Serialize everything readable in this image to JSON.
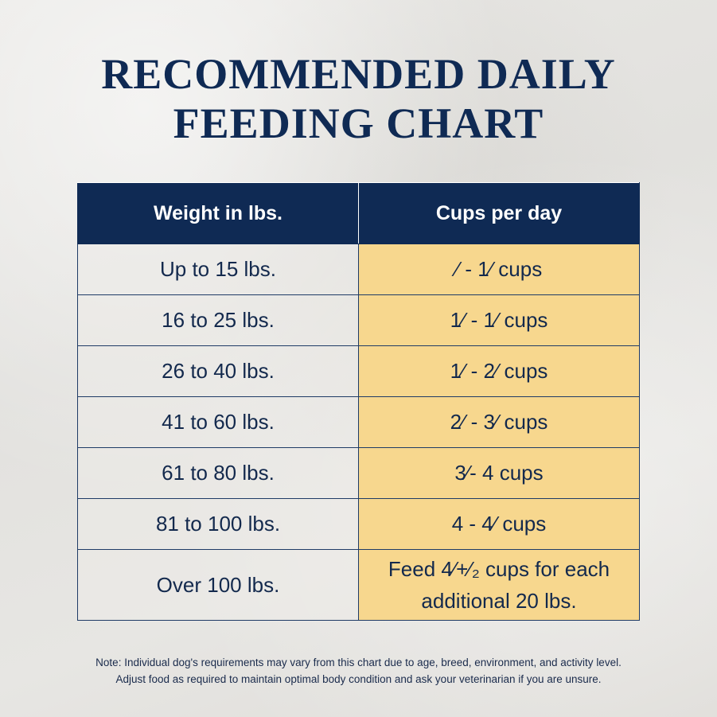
{
  "title": {
    "line1": "RECOMMENDED DAILY",
    "line2": "FEEDING CHART"
  },
  "table": {
    "headers": [
      "Weight in lbs.",
      "Cups per day"
    ],
    "rows": [
      {
        "weight": "Up to 15 lbs.",
        "cups": "⁄ - 1⁄ cups"
      },
      {
        "weight": "16 to 25 lbs.",
        "cups": "1⁄ - 1⁄ cups"
      },
      {
        "weight": "26 to 40 lbs.",
        "cups": "1⁄ - 2⁄ cups"
      },
      {
        "weight": "41 to 60 lbs.",
        "cups": "2⁄ - 3⁄ cups"
      },
      {
        "weight": "61 to 80 lbs.",
        "cups": "3⁄- 4 cups"
      },
      {
        "weight": "81 to 100 lbs.",
        "cups": "4 - 4⁄ cups"
      },
      {
        "weight": "Over 100 lbs.",
        "cups": "Feed 4⁄+⁄₂ cups for each additional 20 lbs."
      }
    ]
  },
  "note": {
    "line1": "Note: Individual dog's requirements may vary from this chart due to age, breed, environment, and activity level.",
    "line2": "Adjust food as required to maintain optimal body condition and ask your veterinarian if you are unsure."
  },
  "colors": {
    "navy": "#0f2a54",
    "cups_fill": "#f7d78e",
    "background": "#e6e5e2"
  }
}
